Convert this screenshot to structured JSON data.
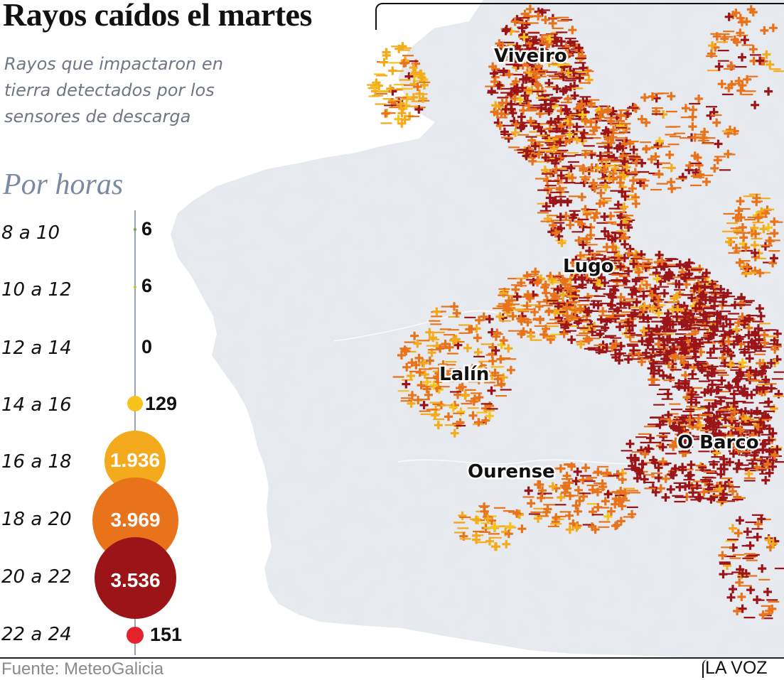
{
  "header": {
    "title": "Rayos caídos el martes",
    "subtitle": "Rayos que impactaron en tierra detectados por los sensores de descarga"
  },
  "legend": {
    "section_title": "Por horas",
    "items": [
      {
        "hours": "8 a 10",
        "count": "6",
        "value": 6,
        "color": "#7aa33a"
      },
      {
        "hours": "10 a 12",
        "count": "6",
        "value": 6,
        "color": "#b6c43a"
      },
      {
        "hours": "12 a 14",
        "count": "0",
        "value": 0,
        "color": "#e8c020"
      },
      {
        "hours": "14 a 16",
        "count": "129",
        "value": 129,
        "color": "#f6c21c"
      },
      {
        "hours": "16 a 18",
        "count": "1.936",
        "value": 1936,
        "color": "#f3aa1c"
      },
      {
        "hours": "18 a 20",
        "count": "3.969",
        "value": 3969,
        "color": "#e8731a"
      },
      {
        "hours": "20 a 22",
        "count": "3.536",
        "value": 3536,
        "color": "#9b1418"
      },
      {
        "hours": "22 a 24",
        "count": "151",
        "value": 151,
        "color": "#e3222b"
      }
    ]
  },
  "map": {
    "land_color": "#e7eaee",
    "cities": [
      "Viveiro",
      "Lugo",
      "Lalín",
      "Ourense",
      "O Barco"
    ]
  },
  "footer": {
    "source": "Fuente: MeteoGalicia",
    "brand": "LA VOZ"
  }
}
